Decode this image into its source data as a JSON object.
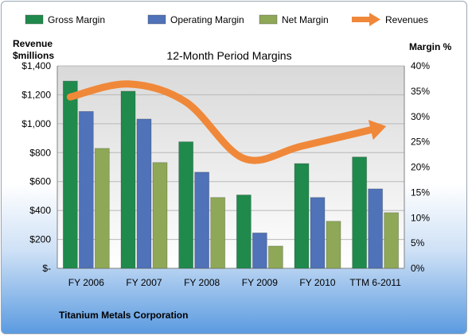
{
  "chart_data": {
    "type": "bar",
    "title": "12-Month Period Margins",
    "left_axis_title": [
      "Revenue",
      "$millions"
    ],
    "right_axis_title": "Margin %",
    "categories": [
      "FY 2006",
      "FY 2007",
      "FY 2008",
      "FY 2009",
      "FY 2010",
      "TTM 6-2011"
    ],
    "left_ticks": [
      "$-",
      "$200",
      "$400",
      "$600",
      "$800",
      "$1,000",
      "$1,200",
      "$1,400"
    ],
    "right_ticks": [
      "0%",
      "5%",
      "10%",
      "15%",
      "20%",
      "25%",
      "30%",
      "35%",
      "40%"
    ],
    "ylim_revenue": [
      0,
      1400
    ],
    "ylim_margin": [
      0,
      40
    ],
    "series": [
      {
        "name": "Gross Margin",
        "color": "#1f8a4c",
        "axis": "margin",
        "values": [
          37,
          35,
          25,
          14.5,
          20.7,
          22
        ]
      },
      {
        "name": "Operating Margin",
        "color": "#4f72b8",
        "axis": "margin",
        "values": [
          31,
          29.5,
          19,
          7,
          14,
          15.7
        ]
      },
      {
        "name": "Net Margin",
        "color": "#8ea857",
        "axis": "margin",
        "values": [
          23.7,
          20.9,
          14,
          4.4,
          9.3,
          11
        ]
      }
    ],
    "line_series": {
      "name": "Revenues",
      "color": "#f0883a",
      "axis": "revenue",
      "values": [
        1185,
        1275,
        1150,
        760,
        845,
        965
      ]
    },
    "footer": "Titanium Metals Corporation"
  }
}
